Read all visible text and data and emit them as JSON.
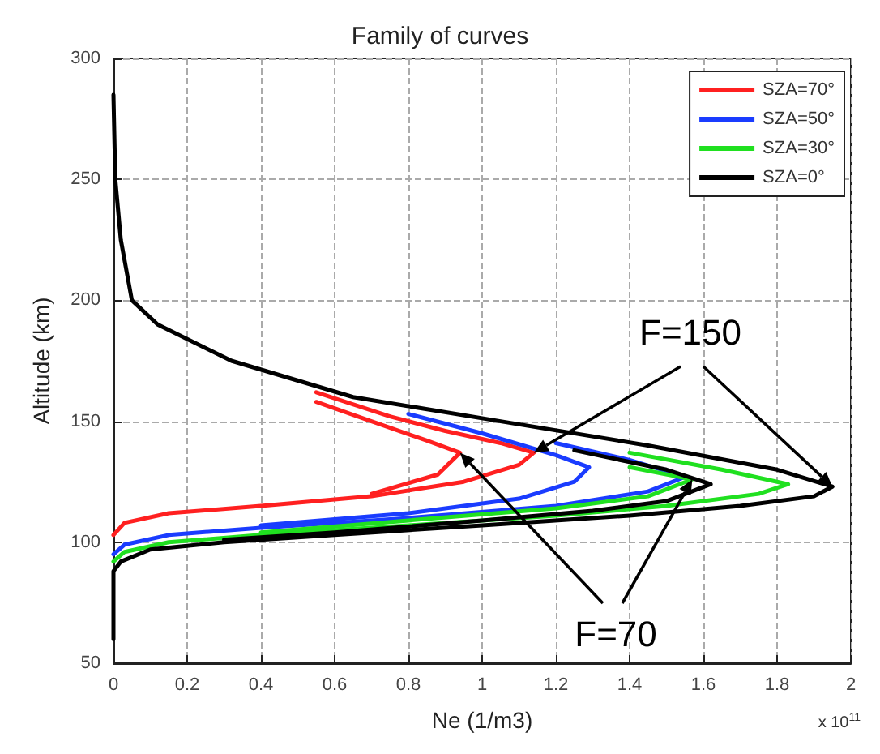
{
  "chart_data": {
    "type": "line",
    "title": "Family of curves",
    "xlabel": "Ne (1/m3)",
    "ylabel": "Altitude (km)",
    "annotations": [
      {
        "text": "F=150",
        "x": 1.14,
        "y": 137
      },
      {
        "text": "F=70",
        "x": 0.94,
        "y": 137
      },
      "x 10$^{11}$"
    ],
    "xlim": [
      0,
      2
    ],
    "xticks": [
      0,
      0.2,
      0.4,
      0.6,
      0.8,
      1,
      1.2,
      1.4,
      1.6,
      1.8,
      2
    ],
    "ylim": [
      50,
      300
    ],
    "yticks": [
      50,
      100,
      150,
      200,
      250,
      300
    ],
    "grid": true,
    "legend": "top right",
    "marker": "none",
    "line_style": "solid",
    "series": [
      {
        "name": "SZA=70°",
        "color": "#ff2020",
        "x": [
          0.7,
          0.88,
          0.94,
          0.85,
          0.7,
          0.55
        ],
        "values": [
          120,
          128,
          137,
          142,
          150,
          158
        ]
      },
      {
        "color": "#ff2020",
        "x": [
          0,
          0.03,
          0.15,
          0.4,
          0.7,
          0.95,
          1.1,
          1.14,
          1.05,
          0.9,
          0.75,
          0.55
        ],
        "values": [
          103,
          108,
          112,
          115,
          119,
          125,
          132,
          137,
          141,
          146,
          152,
          162
        ]
      },
      {
        "name": "SZA=50°",
        "color": "#1a3cff",
        "x": [
          0.4,
          0.8,
          1.1,
          1.25,
          1.29,
          1.2,
          1.0,
          0.8
        ],
        "values": [
          107,
          112,
          118,
          125,
          131,
          136,
          145,
          153
        ]
      },
      {
        "color": "#1a3cff",
        "x": [
          0,
          0.03,
          0.15,
          0.4,
          0.8,
          1.2,
          1.45,
          1.55,
          1.4,
          1.2
        ],
        "values": [
          95,
          99,
          103,
          106,
          110,
          115,
          121,
          127,
          134,
          141
        ]
      },
      {
        "name": "SZA=30°",
        "color": "#20e020",
        "x": [
          0.4,
          0.8,
          1.2,
          1.45,
          1.57,
          1.4
        ],
        "values": [
          104,
          109,
          114,
          119,
          126,
          131
        ]
      },
      {
        "color": "#20e020",
        "x": [
          0,
          0.03,
          0.15,
          0.4,
          0.8,
          1.2,
          1.5,
          1.75,
          1.83,
          1.65,
          1.4
        ],
        "values": [
          92,
          96,
          100,
          103,
          107,
          111,
          115,
          120,
          124,
          130,
          137
        ]
      },
      {
        "name": "SZA=0°",
        "color": "#000000",
        "x": [
          0.3,
          0.6,
          1.0,
          1.3,
          1.5,
          1.62,
          1.5,
          1.25
        ],
        "values": [
          101,
          104,
          109,
          113,
          117,
          124,
          130,
          138
        ]
      },
      {
        "color": "#000000",
        "x": [
          0,
          0,
          0.02,
          0.1,
          0.3,
          0.6,
          1.0,
          1.4,
          1.7,
          1.9,
          1.95,
          1.8,
          1.45,
          1.05,
          0.65,
          0.32,
          0.12,
          0.05,
          0.02,
          0.005,
          0
        ],
        "values": [
          60,
          88,
          92,
          97,
          100,
          103,
          107,
          111,
          115,
          119,
          123,
          130,
          140,
          150,
          160,
          175,
          190,
          200,
          225,
          250,
          285
        ]
      }
    ]
  }
}
